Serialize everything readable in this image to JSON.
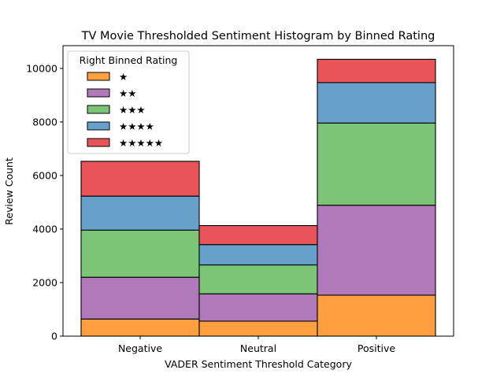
{
  "chart_data": {
    "type": "bar",
    "stacked": true,
    "title": "TV Movie Thresholded Sentiment Histogram by Binned Rating",
    "xlabel": "VADER Sentiment Threshold Category",
    "ylabel": "Review Count",
    "categories": [
      "Negative",
      "Neutral",
      "Positive"
    ],
    "ylim": [
      0,
      10850
    ],
    "yticks": [
      0,
      2000,
      4000,
      6000,
      8000,
      10000
    ],
    "legend": {
      "title": "Right Binned Rating",
      "placement": "top-left"
    },
    "series": [
      {
        "name": "★",
        "color": "#ff9f40",
        "values": [
          640,
          560,
          1530
        ]
      },
      {
        "name": "★★",
        "color": "#b07aba",
        "values": [
          1560,
          1020,
          3360
        ]
      },
      {
        "name": "★★★",
        "color": "#7dc576",
        "values": [
          1760,
          1080,
          3070
        ]
      },
      {
        "name": "★★★★",
        "color": "#66a0cb",
        "values": [
          1270,
          760,
          1510
        ]
      },
      {
        "name": "★★★★★",
        "color": "#e85457",
        "values": [
          1300,
          710,
          870
        ]
      }
    ]
  }
}
